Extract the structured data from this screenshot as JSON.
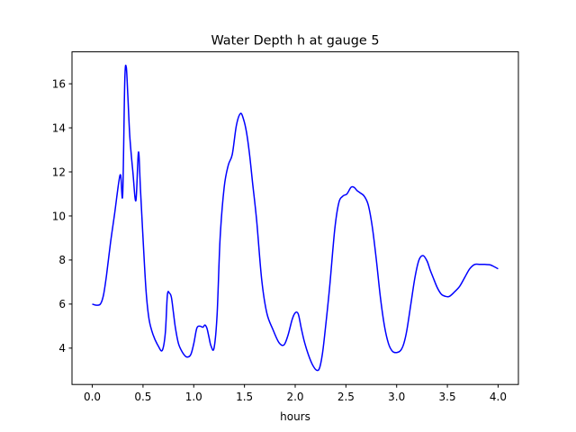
{
  "chart_data": {
    "type": "line",
    "title": "Water Depth h at gauge 5",
    "xlabel": "hours",
    "ylabel": "",
    "xlim": [
      -0.2,
      4.2
    ],
    "ylim": [
      2.35,
      17.45
    ],
    "xticks": [
      0.0,
      0.5,
      1.0,
      1.5,
      2.0,
      2.5,
      3.0,
      3.5,
      4.0
    ],
    "xtick_labels": [
      "0.0",
      "0.5",
      "1.0",
      "1.5",
      "2.0",
      "2.5",
      "3.0",
      "3.5",
      "4.0"
    ],
    "yticks": [
      4,
      6,
      8,
      10,
      12,
      14,
      16
    ],
    "ytick_labels": [
      "4",
      "6",
      "8",
      "10",
      "12",
      "14",
      "16"
    ],
    "grid": false,
    "series": [
      {
        "color": "#0000ff",
        "x": [
          0.0,
          0.04,
          0.08,
          0.11,
          0.14,
          0.18,
          0.22,
          0.26,
          0.28,
          0.3,
          0.32,
          0.335,
          0.35,
          0.37,
          0.4,
          0.43,
          0.455,
          0.475,
          0.5,
          0.53,
          0.56,
          0.6,
          0.65,
          0.69,
          0.72,
          0.74,
          0.76,
          0.78,
          0.8,
          0.82,
          0.85,
          0.89,
          0.93,
          0.97,
          1.0,
          1.03,
          1.06,
          1.09,
          1.11,
          1.13,
          1.15,
          1.17,
          1.2,
          1.23,
          1.26,
          1.3,
          1.34,
          1.38,
          1.42,
          1.46,
          1.49,
          1.52,
          1.55,
          1.58,
          1.62,
          1.67,
          1.72,
          1.78,
          1.84,
          1.89,
          1.93,
          1.97,
          2.0,
          2.03,
          2.06,
          2.09,
          2.13,
          2.17,
          2.21,
          2.24,
          2.27,
          2.3,
          2.34,
          2.39,
          2.43,
          2.47,
          2.51,
          2.55,
          2.58,
          2.61,
          2.64,
          2.68,
          2.72,
          2.76,
          2.8,
          2.84,
          2.88,
          2.92,
          2.96,
          3.0,
          3.04,
          3.07,
          3.1,
          3.14,
          3.18,
          3.22,
          3.26,
          3.3,
          3.33,
          3.36,
          3.4,
          3.44,
          3.48,
          3.52,
          3.57,
          3.62,
          3.67,
          3.72,
          3.77,
          3.82,
          3.87,
          3.92,
          3.96,
          4.0
        ],
        "y": [
          6.0,
          5.95,
          6.0,
          6.4,
          7.3,
          8.8,
          10.1,
          11.5,
          11.85,
          11.0,
          16.1,
          16.75,
          15.5,
          13.6,
          12.0,
          10.7,
          12.9,
          11.2,
          9.0,
          6.6,
          5.3,
          4.6,
          4.1,
          3.9,
          4.7,
          6.4,
          6.5,
          6.3,
          5.6,
          4.9,
          4.2,
          3.8,
          3.6,
          3.7,
          4.2,
          4.9,
          5.0,
          4.95,
          5.05,
          4.9,
          4.5,
          4.1,
          4.0,
          5.5,
          9.0,
          11.3,
          12.3,
          12.8,
          14.1,
          14.65,
          14.4,
          13.8,
          12.8,
          11.5,
          9.8,
          7.1,
          5.6,
          4.85,
          4.25,
          4.15,
          4.6,
          5.3,
          5.6,
          5.55,
          4.9,
          4.3,
          3.7,
          3.25,
          3.0,
          3.1,
          3.8,
          5.0,
          6.8,
          9.4,
          10.6,
          10.9,
          11.0,
          11.3,
          11.3,
          11.15,
          11.05,
          10.9,
          10.5,
          9.5,
          8.0,
          6.3,
          5.0,
          4.2,
          3.85,
          3.8,
          3.9,
          4.2,
          4.8,
          6.0,
          7.2,
          8.0,
          8.2,
          7.95,
          7.55,
          7.2,
          6.75,
          6.45,
          6.35,
          6.35,
          6.55,
          6.8,
          7.2,
          7.6,
          7.8,
          7.8,
          7.8,
          7.78,
          7.7,
          7.6
        ]
      }
    ]
  }
}
